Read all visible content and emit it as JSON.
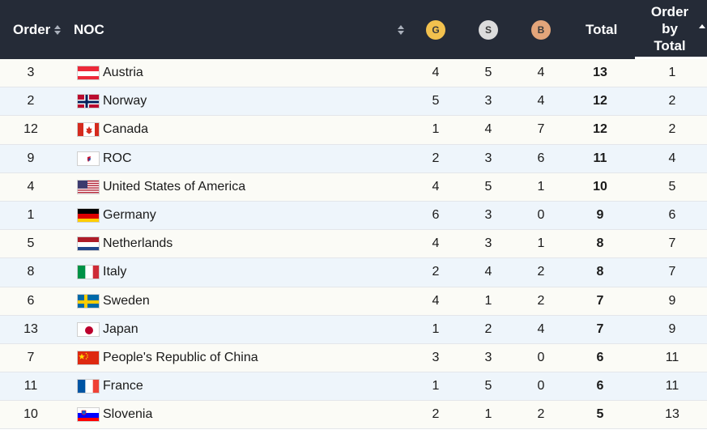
{
  "header": {
    "order": "Order",
    "noc": "NOC",
    "gold": "G",
    "silver": "S",
    "bronze": "B",
    "total": "Total",
    "order_by_total": [
      "Order",
      "by",
      "Total"
    ]
  },
  "colors": {
    "header_bg": "#252b37",
    "gold": "#f2c14e",
    "silver": "#dcdcdc",
    "bronze": "#e3a57a",
    "row_odd": "#fbfbf6",
    "row_even": "#eef5fb"
  },
  "rows": [
    {
      "order": "3",
      "noc": "Austria",
      "flag": "austria-flag-icon",
      "g": "4",
      "s": "5",
      "b": "4",
      "total": "13",
      "obt": "1"
    },
    {
      "order": "2",
      "noc": "Norway",
      "flag": "norway-flag-icon",
      "g": "5",
      "s": "3",
      "b": "4",
      "total": "12",
      "obt": "2"
    },
    {
      "order": "12",
      "noc": "Canada",
      "flag": "canada-flag-icon",
      "g": "1",
      "s": "4",
      "b": "7",
      "total": "12",
      "obt": "2"
    },
    {
      "order": "9",
      "noc": "ROC",
      "flag": "roc-flag-icon",
      "g": "2",
      "s": "3",
      "b": "6",
      "total": "11",
      "obt": "4"
    },
    {
      "order": "4",
      "noc": "United States of America",
      "flag": "usa-flag-icon",
      "g": "4",
      "s": "5",
      "b": "1",
      "total": "10",
      "obt": "5"
    },
    {
      "order": "1",
      "noc": "Germany",
      "flag": "germany-flag-icon",
      "g": "6",
      "s": "3",
      "b": "0",
      "total": "9",
      "obt": "6"
    },
    {
      "order": "5",
      "noc": "Netherlands",
      "flag": "netherlands-flag-icon",
      "g": "4",
      "s": "3",
      "b": "1",
      "total": "8",
      "obt": "7"
    },
    {
      "order": "8",
      "noc": "Italy",
      "flag": "italy-flag-icon",
      "g": "2",
      "s": "4",
      "b": "2",
      "total": "8",
      "obt": "7"
    },
    {
      "order": "6",
      "noc": "Sweden",
      "flag": "sweden-flag-icon",
      "g": "4",
      "s": "1",
      "b": "2",
      "total": "7",
      "obt": "9"
    },
    {
      "order": "13",
      "noc": "Japan",
      "flag": "japan-flag-icon",
      "g": "1",
      "s": "2",
      "b": "4",
      "total": "7",
      "obt": "9"
    },
    {
      "order": "7",
      "noc": "People's Republic of China",
      "flag": "china-flag-icon",
      "g": "3",
      "s": "3",
      "b": "0",
      "total": "6",
      "obt": "11"
    },
    {
      "order": "11",
      "noc": "France",
      "flag": "france-flag-icon",
      "g": "1",
      "s": "5",
      "b": "0",
      "total": "6",
      "obt": "11"
    },
    {
      "order": "10",
      "noc": "Slovenia",
      "flag": "slovenia-flag-icon",
      "g": "2",
      "s": "1",
      "b": "2",
      "total": "5",
      "obt": "13"
    }
  ]
}
